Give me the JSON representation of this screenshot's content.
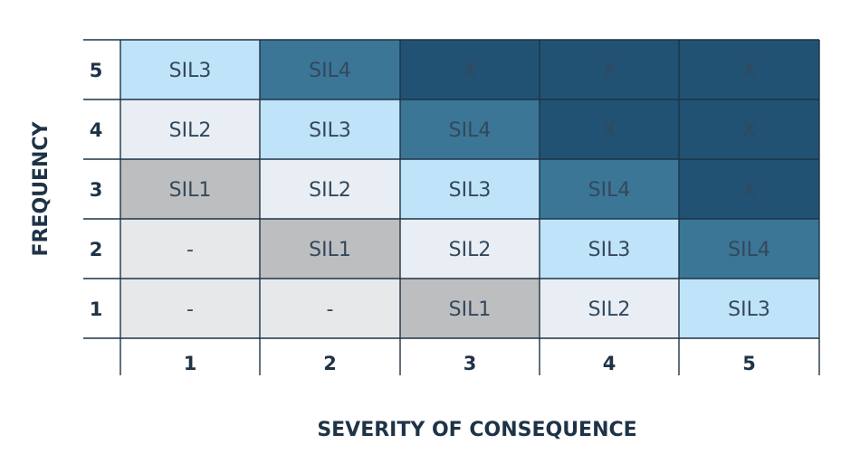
{
  "chart_data": {
    "type": "heatmap",
    "title": "",
    "xlabel": "SEVERITY OF CONSEQUENCE",
    "ylabel": "FREQUENCY",
    "x_categories": [
      "1",
      "2",
      "3",
      "4",
      "5"
    ],
    "y_categories": [
      "5",
      "4",
      "3",
      "2",
      "1"
    ],
    "cells": [
      [
        "SIL3",
        "SIL4",
        "X",
        "X",
        "X"
      ],
      [
        "SIL2",
        "SIL3",
        "SIL4",
        "X",
        "X"
      ],
      [
        "SIL1",
        "SIL2",
        "SIL3",
        "SIL4",
        "X"
      ],
      [
        "-",
        "SIL1",
        "SIL2",
        "SIL3",
        "SIL4"
      ],
      [
        "-",
        "-",
        "SIL1",
        "SIL2",
        "SIL3"
      ]
    ],
    "level_colors": {
      "-": "#e6e8ea",
      "SIL1": "#bdbec0",
      "SIL2": "#e8eef4",
      "SIL3": "#bfe3f8",
      "SIL4": "#3b7696",
      "X": "#215273"
    },
    "grid_color": "#1f3347"
  }
}
